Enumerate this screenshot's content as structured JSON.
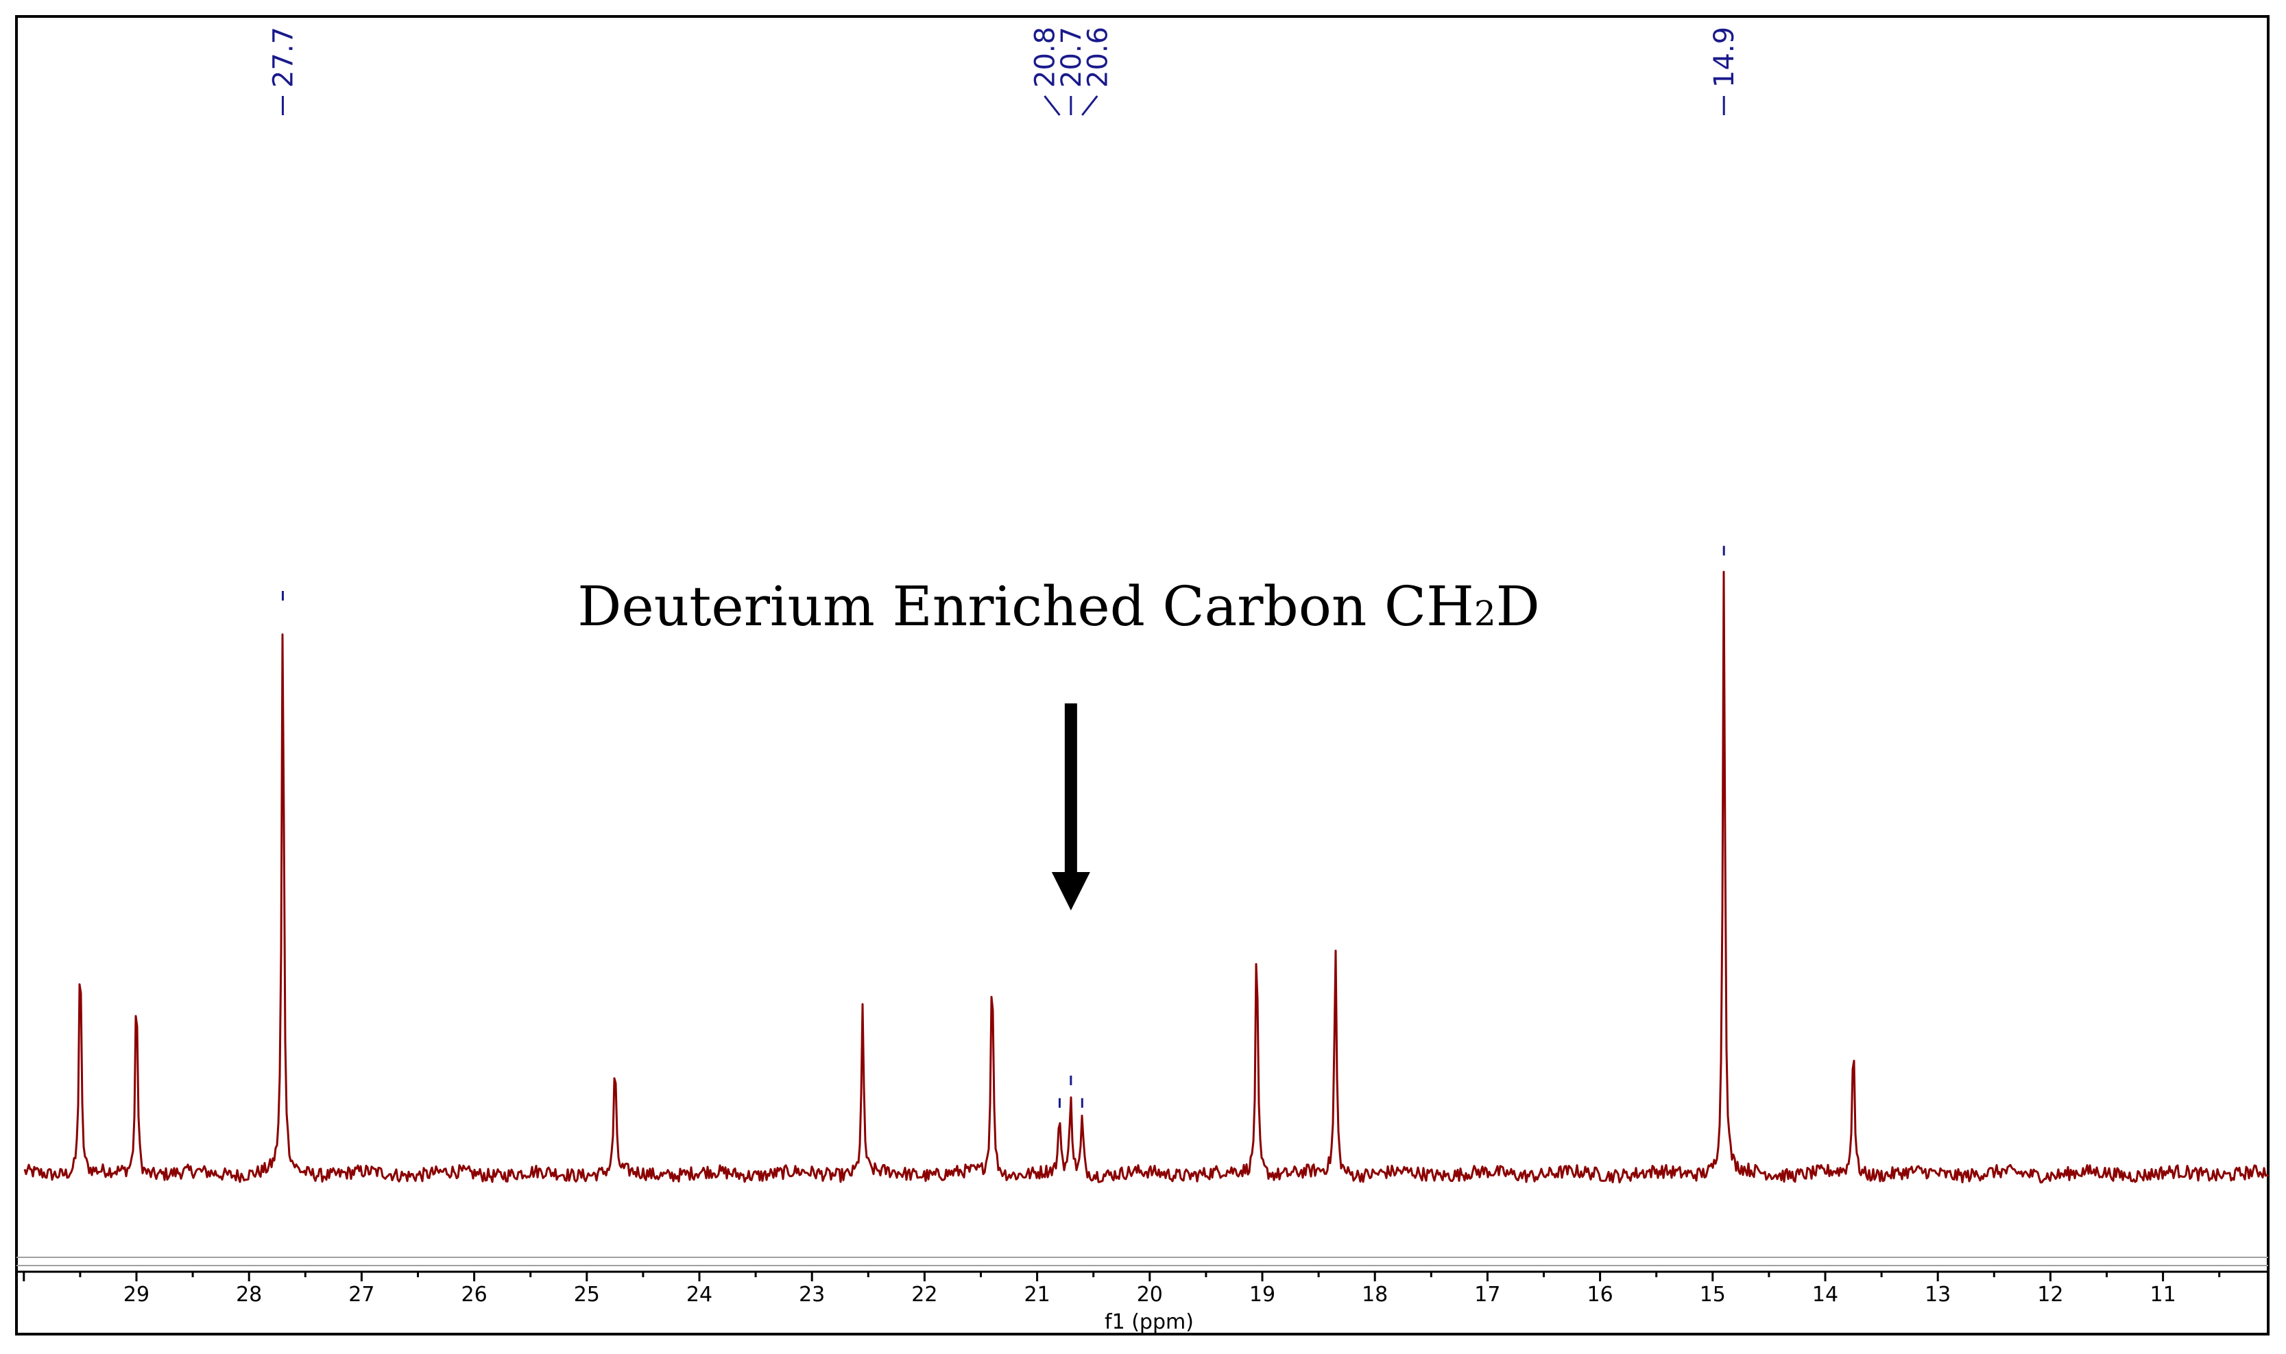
{
  "chart_data": {
    "type": "line",
    "xlabel": "f1 (ppm)",
    "x_reversed": true,
    "xlim": [
      30.0,
      10.0
    ],
    "x_ticks": [
      29,
      28,
      27,
      26,
      25,
      24,
      23,
      22,
      21,
      20,
      19,
      18,
      17,
      16,
      15,
      14,
      13,
      12,
      11
    ],
    "y_relative": {
      "baseline": 0,
      "max": 1.0
    },
    "grid": false,
    "peaks": [
      {
        "ppm": 29.5,
        "intensity": 0.41
      },
      {
        "ppm": 29.0,
        "intensity": 0.34
      },
      {
        "ppm": 27.7,
        "intensity": 1.0
      },
      {
        "ppm": 24.75,
        "intensity": 0.2
      },
      {
        "ppm": 22.55,
        "intensity": 0.29
      },
      {
        "ppm": 21.4,
        "intensity": 0.39
      },
      {
        "ppm": 20.8,
        "intensity": 0.1
      },
      {
        "ppm": 20.7,
        "intensity": 0.14
      },
      {
        "ppm": 20.6,
        "intensity": 0.1
      },
      {
        "ppm": 19.05,
        "intensity": 0.42
      },
      {
        "ppm": 18.35,
        "intensity": 0.4
      },
      {
        "ppm": 14.9,
        "intensity": 1.08
      },
      {
        "ppm": 13.75,
        "intensity": 0.25
      }
    ],
    "peak_labels": [
      {
        "text": "27.7",
        "ppm": 27.7,
        "style": "single"
      },
      {
        "text": "20.8",
        "ppm": 20.8,
        "style": "multiplet-left"
      },
      {
        "text": "20.7",
        "ppm": 20.7,
        "style": "multiplet-center"
      },
      {
        "text": "20.6",
        "ppm": 20.6,
        "style": "multiplet-right"
      },
      {
        "text": "14.9",
        "ppm": 14.9,
        "style": "single"
      }
    ],
    "annotations": [
      {
        "text_main": "Deuterium Enriched Carbon CH",
        "subscript": "2",
        "text_end": "D",
        "arrow_to_ppm": 20.7
      }
    ],
    "colors": {
      "spectrum": "#8b0000",
      "peak_labels": "#1a1a8c",
      "frame": "#000000",
      "baseline_line": "#a0a0a0"
    }
  }
}
